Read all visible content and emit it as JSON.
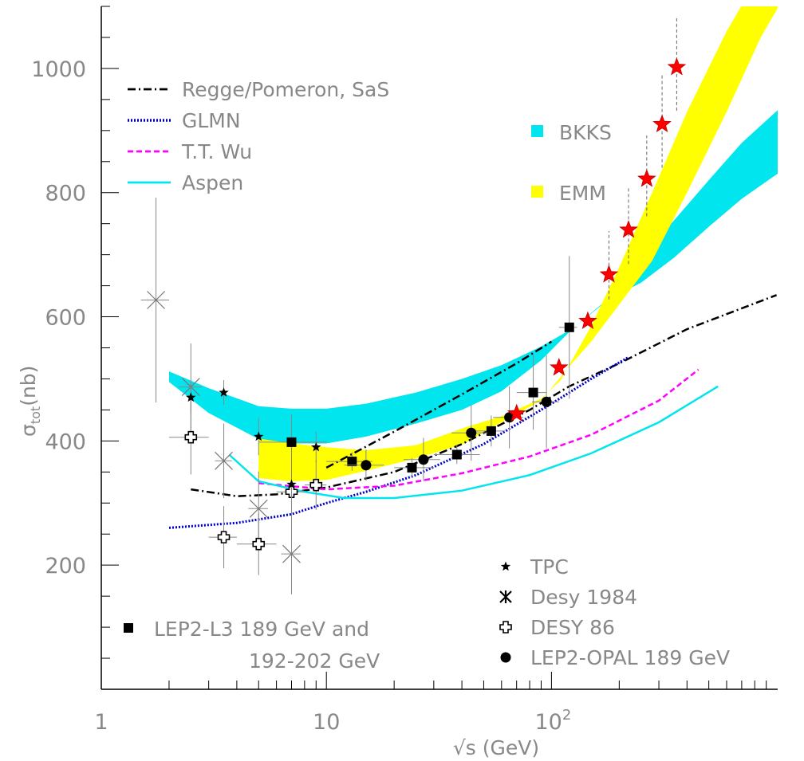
{
  "chart_data": {
    "type": "scatter",
    "title": "",
    "xlabel": "√s (GeV)",
    "ylabel": "σ",
    "ylabel_sub": "tot",
    "ylabel_unit": "(nb)",
    "x_scale": "log",
    "xlim": [
      1,
      1200
    ],
    "ylim": [
      0,
      1100
    ],
    "grid": false,
    "x_ticks": [
      {
        "value": 1,
        "label": "1"
      },
      {
        "value": 10,
        "label": "10"
      },
      {
        "value": 100,
        "label": "10",
        "exp": "2"
      }
    ],
    "y_ticks": [
      200,
      400,
      600,
      800,
      1000
    ],
    "y_tick_labels": [
      "200",
      "400",
      "600",
      "800",
      "1000"
    ],
    "legend_lines": [
      {
        "name": "Regge/Pomeron, SaS",
        "color": "#000000",
        "style": "dashdot"
      },
      {
        "name": "GLMN",
        "color": "#0000cc",
        "style": "dotted"
      },
      {
        "name": "T.T. Wu",
        "color": "#ff00ff",
        "style": "dashed"
      },
      {
        "name": "Aspen",
        "color": "#00e5ee",
        "style": "solid"
      }
    ],
    "legend_bands": [
      {
        "name": "BKKS",
        "color": "#00e5ee"
      },
      {
        "name": "EMM",
        "color": "#ffff00"
      }
    ],
    "legend_markers": [
      {
        "name": "TPC",
        "marker": "star"
      },
      {
        "name": "Desy 1984",
        "marker": "asterisk"
      },
      {
        "name": "DESY 86",
        "marker": "open-cross"
      },
      {
        "name": "LEP2-OPAL 189 GeV",
        "marker": "circle"
      }
    ],
    "legend_l3": {
      "line1": "LEP2-L3 189 GeV and",
      "line2": "192-202 GeV",
      "marker": "square"
    },
    "bands": [
      {
        "name": "BKKS",
        "color": "#00e5ee",
        "upper": [
          [
            2.0,
            512
          ],
          [
            3.0,
            485
          ],
          [
            5.0,
            456
          ],
          [
            7.0,
            452
          ],
          [
            10.0,
            452
          ],
          [
            15.0,
            460
          ],
          [
            25.0,
            478
          ],
          [
            40.0,
            500
          ],
          [
            60.0,
            522
          ],
          [
            90.0,
            552
          ],
          [
            125.0,
            582
          ],
          [
            180.0,
            630
          ],
          [
            250.0,
            695
          ],
          [
            350.0,
            755
          ],
          [
            500.0,
            820
          ],
          [
            700.0,
            880
          ],
          [
            1100.0,
            945
          ]
        ],
        "lower": [
          [
            1100.0,
            840
          ],
          [
            700.0,
            790
          ],
          [
            500.0,
            745
          ],
          [
            350.0,
            695
          ],
          [
            250.0,
            655
          ],
          [
            180.0,
            628
          ],
          [
            125.0,
            582
          ],
          [
            90.0,
            530
          ],
          [
            60.0,
            480
          ],
          [
            40.0,
            450
          ],
          [
            25.0,
            428
          ],
          [
            15.0,
            407
          ],
          [
            10.0,
            396
          ],
          [
            7.0,
            396
          ],
          [
            5.0,
            403
          ],
          [
            3.0,
            445
          ],
          [
            2.0,
            495
          ]
        ]
      },
      {
        "name": "EMM",
        "color": "#ffff00",
        "upper": [
          [
            5.0,
            404
          ],
          [
            7.0,
            396
          ],
          [
            10.0,
            390
          ],
          [
            15.0,
            385
          ],
          [
            25.0,
            393
          ],
          [
            40.0,
            420
          ],
          [
            60.0,
            440
          ],
          [
            90.0,
            468
          ],
          [
            110.0,
            498
          ],
          [
            150.0,
            585
          ],
          [
            200.0,
            680
          ],
          [
            280.0,
            800
          ],
          [
            400.0,
            930
          ],
          [
            600.0,
            1060
          ],
          [
            750.0,
            1120
          ]
        ],
        "lower": [
          [
            1100.0,
            1120
          ],
          [
            850.0,
            1050
          ],
          [
            600.0,
            930
          ],
          [
            400.0,
            800
          ],
          [
            280.0,
            690
          ],
          [
            200.0,
            620
          ],
          [
            150.0,
            560
          ],
          [
            120.0,
            520
          ],
          [
            90.0,
            465
          ],
          [
            60.0,
            430
          ],
          [
            40.0,
            394
          ],
          [
            25.0,
            372
          ],
          [
            15.0,
            352
          ],
          [
            10.0,
            337
          ],
          [
            7.0,
            335
          ],
          [
            5.0,
            340
          ]
        ]
      }
    ],
    "series": [
      {
        "name": "Regge/Pomeron, SaS",
        "color": "#000000",
        "style": "dashdot",
        "points": [
          [
            2.5,
            322
          ],
          [
            4.0,
            311
          ],
          [
            6.0,
            314
          ],
          [
            10.0,
            325
          ],
          [
            20.0,
            350
          ],
          [
            40.0,
            395
          ],
          [
            80.0,
            450
          ],
          [
            120.0,
            488
          ],
          [
            200.0,
            525
          ],
          [
            400.0,
            580
          ],
          [
            1000.0,
            635
          ]
        ]
      },
      {
        "name": "Regge/Pomeron, SaS",
        "color": "#000000",
        "style": "dashdot",
        "points": [
          [
            10.0,
            357
          ],
          [
            20.0,
            415
          ],
          [
            40.0,
            475
          ],
          [
            70.0,
            525
          ],
          [
            100.0,
            560
          ]
        ]
      },
      {
        "name": "GLMN",
        "color": "#0000cc",
        "style": "dotted",
        "points": [
          [
            2.0,
            260
          ],
          [
            4.0,
            268
          ],
          [
            7.0,
            282
          ],
          [
            10.0,
            300
          ],
          [
            15.0,
            318
          ],
          [
            25.0,
            345
          ],
          [
            50.0,
            395
          ],
          [
            100.0,
            460
          ],
          [
            150.0,
            500
          ],
          [
            220.0,
            535
          ]
        ]
      },
      {
        "name": "T.T. Wu",
        "color": "#ff00ff",
        "style": "dashed",
        "points": [
          [
            5.0,
            332
          ],
          [
            10.0,
            322
          ],
          [
            20.0,
            328
          ],
          [
            40.0,
            348
          ],
          [
            80.0,
            375
          ],
          [
            150.0,
            410
          ],
          [
            300.0,
            465
          ],
          [
            450.0,
            515
          ]
        ]
      },
      {
        "name": "Aspen",
        "color": "#00e5ee",
        "style": "solid",
        "points": [
          [
            3.7,
            378
          ],
          [
            5.0,
            335
          ],
          [
            8.0,
            318
          ],
          [
            12.0,
            308
          ],
          [
            20.0,
            308
          ],
          [
            40.0,
            320
          ],
          [
            80.0,
            345
          ],
          [
            150.0,
            380
          ],
          [
            300.0,
            430
          ],
          [
            550.0,
            488
          ]
        ]
      }
    ],
    "points_lep2_l3": [
      {
        "x": 7.0,
        "y": 398,
        "xerr": [
          5.0,
          10.0
        ],
        "yerr": [
          45,
          45
        ]
      },
      {
        "x": 13.0,
        "y": 367,
        "xerr": [
          10.0,
          16.0
        ],
        "yerr": [
          15,
          15
        ]
      },
      {
        "x": 24.0,
        "y": 357,
        "xerr": [
          20.0,
          30.0
        ],
        "yerr": [
          15,
          15
        ]
      },
      {
        "x": 38.0,
        "y": 378,
        "xerr": [
          30.0,
          48.0
        ],
        "yerr": [
          15,
          15
        ]
      },
      {
        "x": 54.0,
        "y": 416,
        "xerr": [
          46.0,
          62.0
        ],
        "yerr": [
          25,
          25
        ]
      },
      {
        "x": 83.0,
        "y": 478,
        "xerr": [
          70.0,
          95.0
        ],
        "yerr": [
          60,
          60
        ]
      },
      {
        "x": 120.0,
        "y": 583,
        "xerr": [
          108.0,
          130.0
        ],
        "yerr": [
          115,
          115
        ]
      }
    ],
    "points_tpc": [
      {
        "x": 2.5,
        "y": 470,
        "yerr": [
          25,
          25
        ]
      },
      {
        "x": 3.5,
        "y": 478,
        "yerr": [
          20,
          20
        ]
      },
      {
        "x": 5.0,
        "y": 407,
        "yerr": [
          30,
          30
        ]
      },
      {
        "x": 7.0,
        "y": 330,
        "yerr": [
          55,
          55
        ]
      },
      {
        "x": 9.0,
        "y": 390,
        "yerr": [
          25,
          25
        ]
      }
    ],
    "points_desy84": [
      {
        "x": 1.75,
        "y": 627,
        "xerr": [
          1.5,
          2.0
        ],
        "yerr": [
          165,
          165
        ]
      },
      {
        "x": 2.5,
        "y": 487,
        "xerr": [
          2.2,
          2.8
        ],
        "yerr": [
          70,
          70
        ]
      },
      {
        "x": 3.5,
        "y": 368,
        "xerr": [
          3.2,
          3.8
        ],
        "yerr": [
          60,
          60
        ]
      },
      {
        "x": 5.0,
        "y": 291,
        "xerr": [
          4.5,
          5.5
        ],
        "yerr": [
          60,
          60
        ]
      },
      {
        "x": 7.0,
        "y": 218,
        "xerr": [
          6.3,
          7.7
        ],
        "yerr": [
          65,
          65
        ]
      }
    ],
    "points_desy86": [
      {
        "x": 2.5,
        "y": 406,
        "xerr": [
          2.0,
          3.0
        ],
        "yerr": [
          60,
          60
        ]
      },
      {
        "x": 3.5,
        "y": 245,
        "xerr": [
          3.0,
          4.0
        ],
        "yerr": [
          50,
          50
        ]
      },
      {
        "x": 5.0,
        "y": 234,
        "xerr": [
          4.0,
          6.0
        ],
        "yerr": [
          50,
          50
        ]
      },
      {
        "x": 7.0,
        "y": 318,
        "xerr": [
          6.0,
          8.0
        ],
        "yerr": [
          45,
          45
        ]
      },
      {
        "x": 9.0,
        "y": 329,
        "xerr": [
          8.0,
          10.0
        ],
        "yerr": [
          40,
          40
        ]
      }
    ],
    "points_opal": [
      {
        "x": 15.0,
        "y": 361,
        "xerr": [
          12.0,
          18.0
        ],
        "yerr": [
          25,
          25
        ]
      },
      {
        "x": 27.0,
        "y": 370,
        "xerr": [
          22.0,
          32.0
        ],
        "yerr": [
          35,
          35
        ]
      },
      {
        "x": 44.0,
        "y": 413,
        "xerr": [
          36.0,
          52.0
        ],
        "yerr": [
          45,
          45
        ]
      },
      {
        "x": 65.0,
        "y": 438,
        "xerr": [
          55.0,
          75.0
        ],
        "yerr": [
          50,
          50
        ]
      },
      {
        "x": 95.0,
        "y": 463,
        "xerr": [
          82.0,
          108.0
        ],
        "yerr": [
          75,
          75
        ]
      }
    ],
    "points_red_star": [
      {
        "x": 70.0,
        "y": 444
      },
      {
        "x": 108.0,
        "y": 518
      },
      {
        "x": 145.0,
        "y": 593
      },
      {
        "x": 180.0,
        "y": 668,
        "yerr": [
          40,
          70
        ]
      },
      {
        "x": 220.0,
        "y": 740,
        "yerr": [
          55,
          70
        ]
      },
      {
        "x": 265.0,
        "y": 822,
        "yerr": [
          60,
          70
        ]
      },
      {
        "x": 310.0,
        "y": 910,
        "yerr": [
          70,
          80
        ]
      },
      {
        "x": 360.0,
        "y": 1002,
        "yerr": [
          70,
          80
        ]
      }
    ]
  }
}
